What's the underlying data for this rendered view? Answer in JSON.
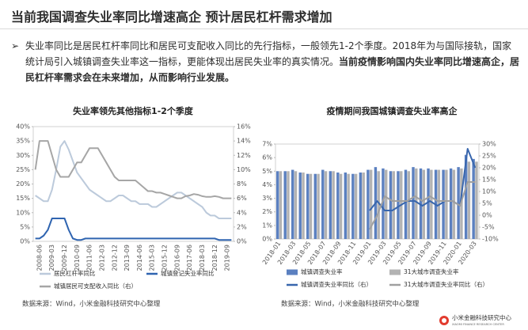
{
  "header": {
    "title": "当前我国调查失业率同比增速高企 预计居民杠杆需求增加",
    "bullet": "➢",
    "text": "失业率同比是居民杠杆率同比和居民可支配收入同比的先行指标，一般领先1-2个季度。2018年为与国际接轨，国家统计局引入城镇调查失业率这一指标，更能体现出居民失业率的真实情况。",
    "emphasis": "当前疫情影响国内失业率同比增速高企，居民杠杆率需求会在未来增加，从而影响行业发展。"
  },
  "footer": {
    "logo_text": "小米金融科技研究中心",
    "logo_subtitle": "XIAOMI FINANCE RESEARCH CENTER"
  },
  "chart_data": [
    {
      "type": "line",
      "title": "失业率领先其他指标1-2个季度",
      "source": "数据来源：Wind，小米金融科技研究中心整理",
      "categories": [
        null,
        "2008-06",
        null,
        null,
        "2009-03",
        null,
        null,
        "2009-12",
        null,
        null,
        "2010-09",
        null,
        null,
        "2011-06",
        null,
        null,
        "2012-03",
        null,
        null,
        "2012-12",
        null,
        null,
        "2013-09",
        null,
        null,
        "2014-06",
        null,
        null,
        "2015-03",
        null,
        null,
        "2015-12",
        null,
        null,
        "2016-09",
        null,
        null,
        "2017-06",
        null,
        null,
        "2018-03",
        null,
        null,
        "2018-12",
        null,
        null,
        "2019-09",
        null
      ],
      "series": [
        {
          "name": "居民杠杆率同比",
          "type": "line",
          "color": "#bccadb",
          "values": [
            16,
            15,
            14,
            14,
            18,
            25,
            33,
            35,
            32,
            28,
            24,
            22,
            20,
            18,
            17,
            16,
            15,
            14,
            14,
            15,
            16,
            16,
            15,
            14,
            14,
            13,
            13,
            13,
            12,
            12,
            13,
            14,
            15,
            16,
            17,
            17,
            16,
            15,
            14,
            13,
            12,
            10,
            9,
            9,
            8,
            8,
            8,
            8
          ]
        },
        {
          "name": "城镇登记失业率同比",
          "type": "line",
          "color": "#2f64b0",
          "values": [
            1,
            1,
            2,
            4,
            8,
            8,
            8,
            8,
            4,
            1,
            0.5,
            0.5,
            1,
            1,
            1,
            1,
            1,
            1,
            1,
            1,
            1,
            1,
            1,
            1,
            1,
            1,
            1,
            1,
            1,
            1,
            1,
            1,
            1,
            1,
            1,
            1,
            1,
            1,
            1,
            1,
            1,
            1,
            1,
            1,
            0.5,
            0.5,
            0.5,
            0.5
          ]
        },
        {
          "name": "城镇居民可支配收入同比（右）",
          "type": "line",
          "axis": "y2",
          "color": "#a6a6a6",
          "values": [
            10,
            14,
            14,
            14,
            12,
            10,
            9,
            9,
            9,
            10,
            11,
            11,
            12,
            13,
            13,
            13,
            12,
            11,
            10,
            9,
            8.5,
            8.5,
            8.5,
            8.5,
            8.5,
            8,
            7.5,
            7,
            7,
            6.8,
            6.8,
            6.6,
            6.4,
            6.2,
            6,
            6,
            6.3,
            6.4,
            6.6,
            6.5,
            6.3,
            6.2,
            6.2,
            6.3,
            6.2,
            6,
            6,
            6
          ]
        }
      ],
      "ylim": [
        0,
        40
      ],
      "yticks": [
        {
          "value": 0,
          "label": "0%"
        },
        {
          "value": 5,
          "label": "5%"
        },
        {
          "value": 10,
          "label": "10%"
        },
        {
          "value": 15,
          "label": "15%"
        },
        {
          "value": 20,
          "label": "20%"
        },
        {
          "value": 25,
          "label": "25%"
        },
        {
          "value": 30,
          "label": "30%"
        },
        {
          "value": 35,
          "label": "35%"
        },
        {
          "value": 40,
          "label": "40%"
        }
      ],
      "y2lim": [
        0,
        16
      ],
      "y2ticks": [
        {
          "value": 0,
          "label": "0%"
        },
        {
          "value": 2,
          "label": "2%"
        },
        {
          "value": 4,
          "label": "4%"
        },
        {
          "value": 6,
          "label": "6%"
        },
        {
          "value": 8,
          "label": "8%"
        },
        {
          "value": 10,
          "label": "10%"
        },
        {
          "value": 12,
          "label": "12%"
        },
        {
          "value": 14,
          "label": "14%"
        },
        {
          "value": 16,
          "label": "16%"
        }
      ],
      "grid": false
    },
    {
      "type": "bar",
      "title": "疫情期间我国城镇调查失业率高企",
      "source": "数据来源：Wind，小米金融科技研究中心整理",
      "categories": [
        "2018-01",
        null,
        "2018-03",
        null,
        "2018-05",
        null,
        "2018-07",
        null,
        "2018-09",
        null,
        "2018-11",
        null,
        "2019-01",
        null,
        "2019-03",
        null,
        "2019-05",
        null,
        "2019-07",
        null,
        "2019-09",
        null,
        "2019-11",
        null,
        "2020-01",
        null,
        "2020-03"
      ],
      "series": [
        {
          "name": "城镇调查失业率",
          "type": "bar",
          "color": "#5b80c0",
          "values": [
            5.0,
            5.0,
            5.1,
            4.9,
            4.8,
            4.8,
            5.1,
            5.0,
            4.9,
            4.9,
            4.8,
            4.9,
            5.1,
            5.3,
            5.2,
            5.0,
            5.0,
            5.1,
            5.3,
            5.2,
            5.2,
            5.1,
            5.1,
            5.2,
            5.3,
            6.2,
            5.9
          ]
        },
        {
          "name": "31大城市调查失业率",
          "type": "bar",
          "color": "#b3b3b3",
          "values": [
            5.0,
            5.0,
            5.0,
            4.9,
            4.8,
            4.8,
            5.0,
            5.0,
            4.8,
            4.8,
            4.8,
            4.9,
            5.1,
            5.0,
            5.1,
            5.0,
            5.0,
            5.0,
            5.2,
            5.1,
            5.1,
            5.1,
            5.1,
            5.1,
            5.2,
            5.7,
            5.7
          ]
        },
        {
          "name": "城镇调查失业率同比（右）",
          "type": "line",
          "axis": "y2",
          "color": "#3866ad",
          "values": [
            null,
            null,
            null,
            null,
            null,
            null,
            null,
            null,
            null,
            null,
            null,
            null,
            2,
            6,
            2,
            2,
            4,
            6,
            6,
            4,
            6,
            4,
            6,
            6,
            4,
            28,
            20
          ]
        },
        {
          "name": "31大城市调查失业率同比（右）",
          "type": "line",
          "axis": "y2",
          "color": "#a0a0a0",
          "values": [
            null,
            null,
            null,
            null,
            null,
            null,
            null,
            null,
            null,
            null,
            null,
            null,
            -6,
            0,
            8,
            6,
            6,
            6,
            8,
            6,
            8,
            6,
            6,
            6,
            4,
            14,
            14
          ]
        }
      ],
      "ylim": [
        0,
        7
      ],
      "yticks": [
        {
          "value": 0,
          "label": "0%"
        },
        {
          "value": 1,
          "label": "1%"
        },
        {
          "value": 2,
          "label": "2%"
        },
        {
          "value": 3,
          "label": "3%"
        },
        {
          "value": 4,
          "label": "4%"
        },
        {
          "value": 5,
          "label": "5%"
        },
        {
          "value": 6,
          "label": "6%"
        },
        {
          "value": 7,
          "label": "7%"
        }
      ],
      "y2lim": [
        -10,
        30
      ],
      "y2ticks": [
        {
          "value": -10,
          "label": "-10%"
        },
        {
          "value": -5,
          "label": "-5%"
        },
        {
          "value": 0,
          "label": "0%"
        },
        {
          "value": 5,
          "label": "5%"
        },
        {
          "value": 10,
          "label": "10%"
        },
        {
          "value": 15,
          "label": "15%"
        },
        {
          "value": 20,
          "label": "20%"
        },
        {
          "value": 25,
          "label": "25%"
        },
        {
          "value": 30,
          "label": "30%"
        }
      ],
      "grid": false
    }
  ]
}
